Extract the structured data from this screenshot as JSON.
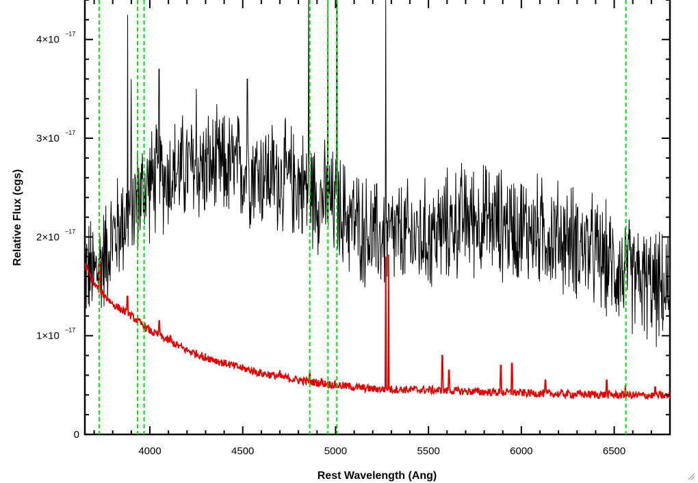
{
  "chart_data": {
    "type": "line",
    "title": "",
    "xlabel": "Rest Wavelength (Ang)",
    "ylabel": "Relative Flux (cgs)",
    "xlim": [
      3650,
      6800
    ],
    "ylim": [
      0,
      4.4e-17
    ],
    "x_ticks": [
      {
        "value": 4000,
        "label": "4000"
      },
      {
        "value": 4500,
        "label": "4500"
      },
      {
        "value": 5000,
        "label": "5000"
      },
      {
        "value": 5500,
        "label": "5500"
      },
      {
        "value": 6000,
        "label": "6000"
      },
      {
        "value": 6500,
        "label": "6500"
      }
    ],
    "y_ticks": [
      {
        "value": 0,
        "mantissa": "0",
        "exponent": ""
      },
      {
        "value": 1e-17,
        "mantissa": "1×10",
        "exponent": "−17"
      },
      {
        "value": 2e-17,
        "mantissa": "2×10",
        "exponent": "−17"
      },
      {
        "value": 3e-17,
        "mantissa": "3×10",
        "exponent": "−17"
      },
      {
        "value": 4e-17,
        "mantissa": "4×10",
        "exponent": "−17"
      }
    ],
    "line_wavelengths": [
      3727,
      3934,
      3969,
      4861,
      4959,
      5007,
      6563
    ],
    "series": [
      {
        "color": "#000000",
        "noise": 4.5e-18,
        "continuum": [
          [
            3650,
            1.7e-17
          ],
          [
            3700,
            1.6e-17
          ],
          [
            3800,
            2e-17
          ],
          [
            3900,
            2.3e-17
          ],
          [
            4000,
            2.55e-17
          ],
          [
            4200,
            2.7e-17
          ],
          [
            4500,
            2.7e-17
          ],
          [
            4800,
            2.55e-17
          ],
          [
            5000,
            2.3e-17
          ],
          [
            5200,
            2e-17
          ],
          [
            5500,
            2e-17
          ],
          [
            5700,
            2.2e-17
          ],
          [
            6000,
            2.1e-17
          ],
          [
            6300,
            1.95e-17
          ],
          [
            6500,
            1.7e-17
          ],
          [
            6800,
            1.4e-17
          ]
        ],
        "spikes": [
          [
            3900,
            3.6e-17
          ],
          [
            4050,
            3.7e-17
          ],
          [
            4250,
            3.5e-17
          ],
          [
            4525,
            3.6e-17
          ],
          [
            4855,
            4.5e-17
          ],
          [
            4958,
            4.5e-17
          ],
          [
            5007,
            4.5e-17
          ],
          [
            5270,
            4.4e-17
          ],
          [
            3880,
            4.25e-17
          ]
        ]
      },
      {
        "color": "#e00000",
        "noise": 4e-19,
        "continuum": [
          [
            3650,
            1.72e-17
          ],
          [
            3700,
            1.52e-17
          ],
          [
            3800,
            1.32e-17
          ],
          [
            3900,
            1.2e-17
          ],
          [
            4000,
            1.05e-17
          ],
          [
            4200,
            8.5e-18
          ],
          [
            4400,
            7.2e-18
          ],
          [
            4600,
            6.2e-18
          ],
          [
            4800,
            5.5e-18
          ],
          [
            5000,
            5e-18
          ],
          [
            5200,
            4.6e-18
          ],
          [
            5500,
            4.5e-18
          ],
          [
            5800,
            4.3e-18
          ],
          [
            6200,
            4.1e-18
          ],
          [
            6500,
            4e-18
          ],
          [
            6800,
            3.9e-18
          ]
        ],
        "spikes": [
          [
            3730,
            1.75e-17
          ],
          [
            3880,
            1.4e-17
          ],
          [
            4050,
            1.15e-17
          ],
          [
            4110,
            1e-17
          ],
          [
            4290,
            7.5e-18
          ],
          [
            4420,
            7e-18
          ],
          [
            4700,
            6.5e-18
          ],
          [
            4860,
            6.2e-18
          ],
          [
            4925,
            5.7e-18
          ],
          [
            5270,
            1.8e-17
          ],
          [
            5285,
            1.82e-17
          ],
          [
            5575,
            8e-18
          ],
          [
            5610,
            6.5e-18
          ],
          [
            5890,
            7e-18
          ],
          [
            5950,
            7.2e-18
          ],
          [
            6130,
            5.5e-18
          ],
          [
            6460,
            5.5e-18
          ],
          [
            6560,
            5e-18
          ],
          [
            6720,
            4.8e-18
          ]
        ]
      }
    ],
    "reference_line_color": "#00dd00",
    "grid": false,
    "legend": "none"
  }
}
